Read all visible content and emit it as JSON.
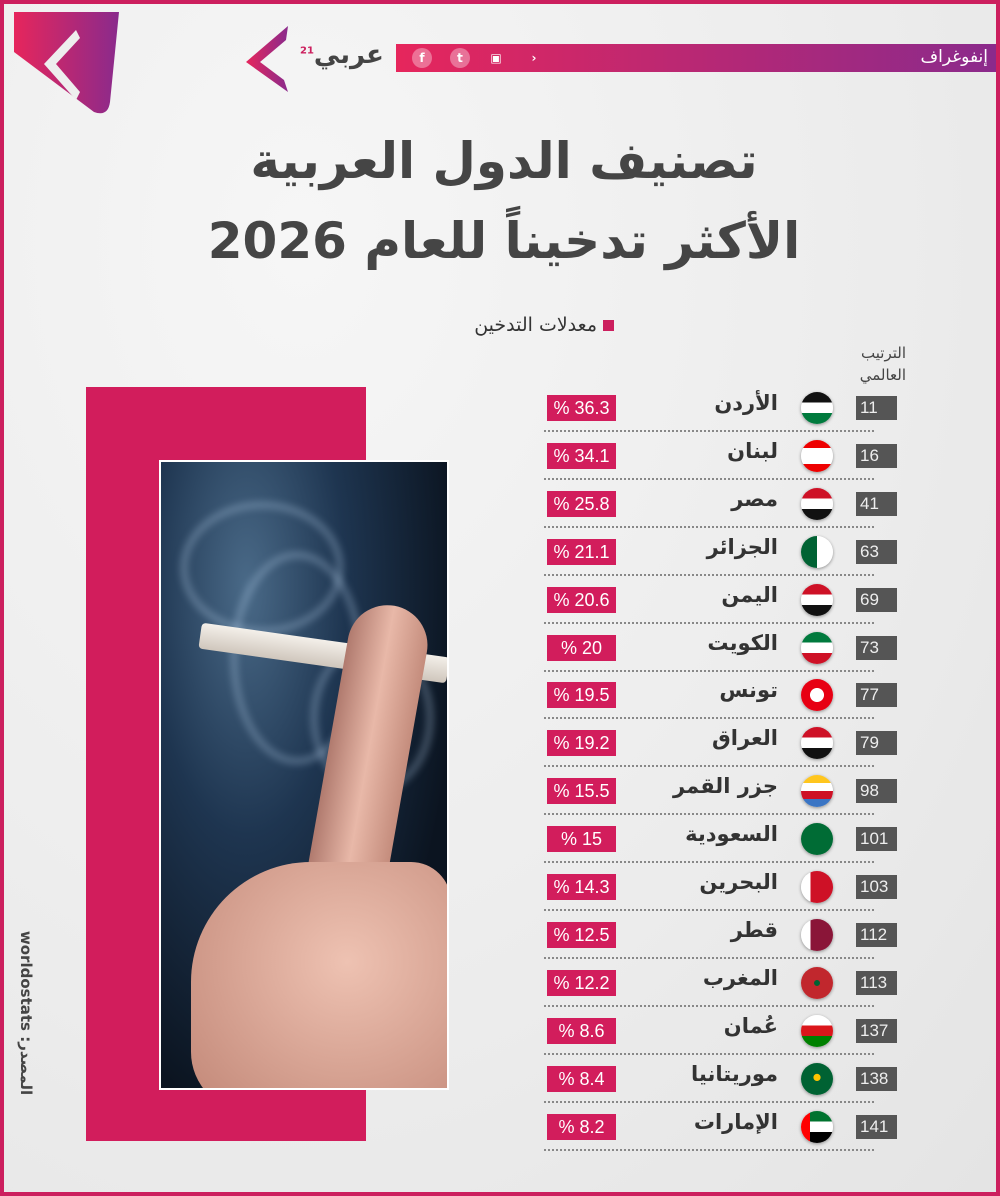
{
  "header": {
    "label": "إنفوغراف",
    "brand": "عربي",
    "brand_sup": "21",
    "social_icons": [
      "facebook-icon",
      "twitter-icon",
      "youtube-icon",
      "brand-chevron-icon"
    ]
  },
  "colors": {
    "accent": "#d21d5c",
    "purple": "#8a2a8c",
    "rank_box": "#555555"
  },
  "title": {
    "line1": "تصنيف الدول العربية",
    "line2": "الأكثر تدخيناً للعام 2026"
  },
  "source": "المصدر: worldostats",
  "chart_data": {
    "type": "table",
    "legend": "معدلات التدخين",
    "rank_header": [
      "الترتيب",
      "العالمي"
    ],
    "rows": [
      {
        "country": "الأردن",
        "rank": "11",
        "value": "% 36.3"
      },
      {
        "country": "لبنان",
        "rank": "16",
        "value": "% 34.1"
      },
      {
        "country": "مصر",
        "rank": "41",
        "value": "% 25.8"
      },
      {
        "country": "الجزائر",
        "rank": "63",
        "value": "% 21.1"
      },
      {
        "country": "اليمن",
        "rank": "69",
        "value": "% 20.6"
      },
      {
        "country": "الكويت",
        "rank": "73",
        "value": "% 20"
      },
      {
        "country": "تونس",
        "rank": "77",
        "value": "% 19.5"
      },
      {
        "country": "العراق",
        "rank": "79",
        "value": "% 19.2"
      },
      {
        "country": "جزر القمر",
        "rank": "98",
        "value": "% 15.5"
      },
      {
        "country": "السعودية",
        "rank": "101",
        "value": "% 15"
      },
      {
        "country": "البحرين",
        "rank": "103",
        "value": "% 14.3"
      },
      {
        "country": "قطر",
        "rank": "112",
        "value": "% 12.5"
      },
      {
        "country": "المغرب",
        "rank": "113",
        "value": "% 12.2"
      },
      {
        "country": "عُمان",
        "rank": "137",
        "value": "% 8.6"
      },
      {
        "country": "موريتانيا",
        "rank": "138",
        "value": "% 8.4"
      },
      {
        "country": "الإمارات",
        "rank": "141",
        "value": "% 8.2"
      }
    ]
  }
}
